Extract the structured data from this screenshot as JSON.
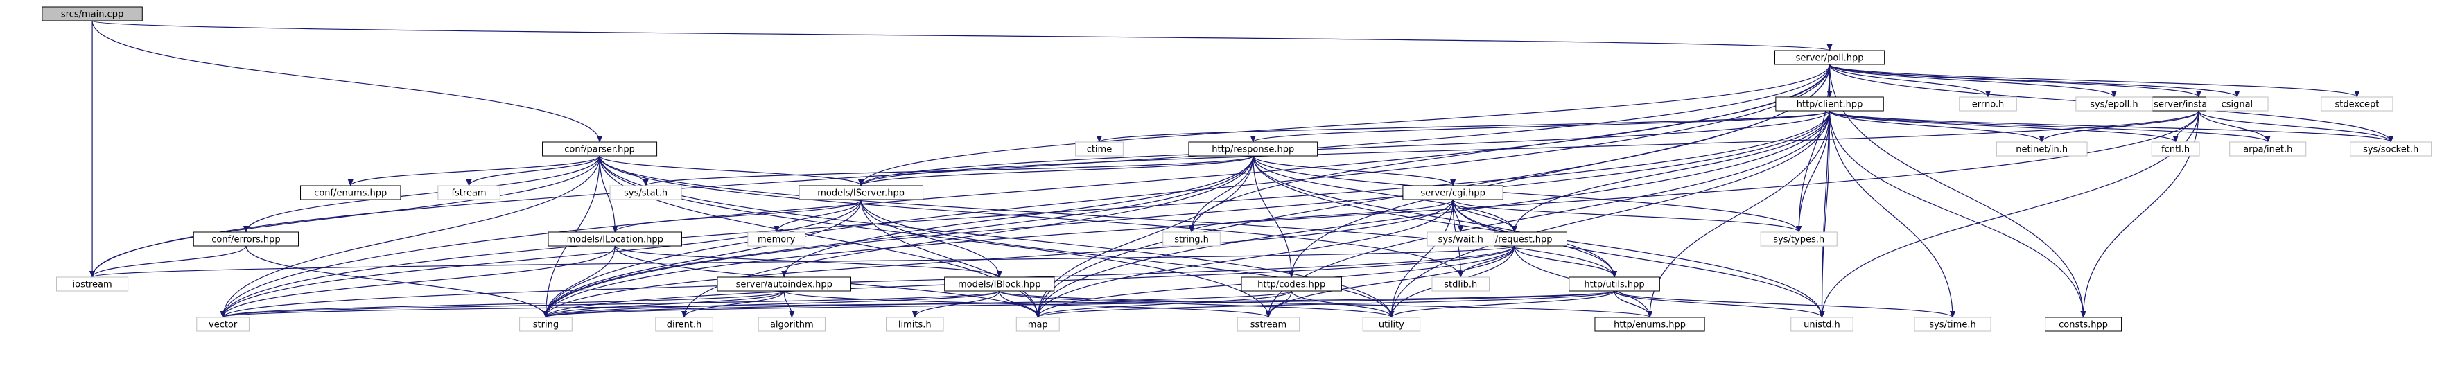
{
  "graph": {
    "root": "srcs/main.cpp",
    "colors": {
      "edge": "#191970",
      "root_fill": "#bfbfbf",
      "node_fill": "#ffffff",
      "node_border": "#000000",
      "system_header_border": "#bfbfbf"
    },
    "nodes": [
      {
        "id": "main",
        "label": "srcs/main.cpp",
        "kind": "root"
      },
      {
        "id": "poll",
        "label": "server/poll.hpp",
        "kind": "project"
      },
      {
        "id": "client",
        "label": "http/client.hpp",
        "kind": "project"
      },
      {
        "id": "instance",
        "label": "server/instance.hpp",
        "kind": "project"
      },
      {
        "id": "response",
        "label": "http/response.hpp",
        "kind": "project"
      },
      {
        "id": "parser",
        "label": "conf/parser.hpp",
        "kind": "project"
      },
      {
        "id": "confenums",
        "label": "conf/enums.hpp",
        "kind": "project"
      },
      {
        "id": "iserver",
        "label": "models/IServer.hpp",
        "kind": "project"
      },
      {
        "id": "cgi",
        "label": "server/cgi.hpp",
        "kind": "project"
      },
      {
        "id": "confErrors",
        "label": "conf/errors.hpp",
        "kind": "project"
      },
      {
        "id": "ilocation",
        "label": "models/ILocation.hpp",
        "kind": "project"
      },
      {
        "id": "request",
        "label": "http/request.hpp",
        "kind": "project"
      },
      {
        "id": "autoindex",
        "label": "server/autoindex.hpp",
        "kind": "project"
      },
      {
        "id": "iblock",
        "label": "models/IBlock.hpp",
        "kind": "project"
      },
      {
        "id": "codes",
        "label": "http/codes.hpp",
        "kind": "project"
      },
      {
        "id": "utils",
        "label": "http/utils.hpp",
        "kind": "project"
      },
      {
        "id": "httpenums",
        "label": "http/enums.hpp",
        "kind": "project"
      },
      {
        "id": "consts",
        "label": "consts.hpp",
        "kind": "project"
      },
      {
        "id": "errno",
        "label": "errno.h",
        "kind": "system"
      },
      {
        "id": "sysepoll",
        "label": "sys/epoll.h",
        "kind": "system"
      },
      {
        "id": "csignal",
        "label": "csignal",
        "kind": "system"
      },
      {
        "id": "stdexcept",
        "label": "stdexcept",
        "kind": "system"
      },
      {
        "id": "ctime",
        "label": "ctime",
        "kind": "system"
      },
      {
        "id": "netinet",
        "label": "netinet/in.h",
        "kind": "system"
      },
      {
        "id": "fcntl",
        "label": "fcntl.h",
        "kind": "system"
      },
      {
        "id": "arpainet",
        "label": "arpa/inet.h",
        "kind": "system"
      },
      {
        "id": "syssocket",
        "label": "sys/socket.h",
        "kind": "system"
      },
      {
        "id": "fstream",
        "label": "fstream",
        "kind": "system"
      },
      {
        "id": "sysstat",
        "label": "sys/stat.h",
        "kind": "system"
      },
      {
        "id": "memory",
        "label": "memory",
        "kind": "system"
      },
      {
        "id": "stringh",
        "label": "string.h",
        "kind": "system"
      },
      {
        "id": "syswait",
        "label": "sys/wait.h",
        "kind": "system"
      },
      {
        "id": "systypes",
        "label": "sys/types.h",
        "kind": "system"
      },
      {
        "id": "iostream",
        "label": "iostream",
        "kind": "system"
      },
      {
        "id": "stdlib",
        "label": "stdlib.h",
        "kind": "system"
      },
      {
        "id": "vector",
        "label": "vector",
        "kind": "system"
      },
      {
        "id": "string",
        "label": "string",
        "kind": "system"
      },
      {
        "id": "dirent",
        "label": "dirent.h",
        "kind": "system"
      },
      {
        "id": "algorithm",
        "label": "algorithm",
        "kind": "system"
      },
      {
        "id": "limits",
        "label": "limits.h",
        "kind": "system"
      },
      {
        "id": "map",
        "label": "map",
        "kind": "system"
      },
      {
        "id": "sstream",
        "label": "sstream",
        "kind": "system"
      },
      {
        "id": "utility",
        "label": "utility",
        "kind": "system"
      },
      {
        "id": "unistd",
        "label": "unistd.h",
        "kind": "system"
      },
      {
        "id": "systime",
        "label": "sys/time.h",
        "kind": "system"
      }
    ],
    "edges": [
      [
        "main",
        "poll"
      ],
      [
        "main",
        "parser"
      ],
      [
        "main",
        "iostream"
      ],
      [
        "poll",
        "client"
      ],
      [
        "poll",
        "instance"
      ],
      [
        "poll",
        "errno"
      ],
      [
        "poll",
        "sysepoll"
      ],
      [
        "poll",
        "csignal"
      ],
      [
        "poll",
        "stdexcept"
      ],
      [
        "poll",
        "syssocket"
      ],
      [
        "poll",
        "systypes"
      ],
      [
        "poll",
        "consts"
      ],
      [
        "poll",
        "iserver"
      ],
      [
        "poll",
        "codes"
      ],
      [
        "poll",
        "stringh"
      ],
      [
        "poll",
        "map"
      ],
      [
        "poll",
        "vector"
      ],
      [
        "poll",
        "string"
      ],
      [
        "poll",
        "iostream"
      ],
      [
        "poll",
        "unistd"
      ],
      [
        "client",
        "response"
      ],
      [
        "client",
        "request"
      ],
      [
        "client",
        "ctime"
      ],
      [
        "client",
        "netinet"
      ],
      [
        "client",
        "fcntl"
      ],
      [
        "client",
        "arpainet"
      ],
      [
        "client",
        "syssocket"
      ],
      [
        "client",
        "systypes"
      ],
      [
        "client",
        "consts"
      ],
      [
        "client",
        "httpenums"
      ],
      [
        "client",
        "iserver"
      ],
      [
        "client",
        "unistd"
      ],
      [
        "client",
        "systime"
      ],
      [
        "client",
        "sstream"
      ],
      [
        "client",
        "map"
      ],
      [
        "client",
        "string"
      ],
      [
        "client",
        "vector"
      ],
      [
        "client",
        "utility"
      ],
      [
        "instance",
        "netinet"
      ],
      [
        "instance",
        "fcntl"
      ],
      [
        "instance",
        "arpainet"
      ],
      [
        "instance",
        "syssocket"
      ],
      [
        "instance",
        "iserver"
      ],
      [
        "instance",
        "unistd"
      ],
      [
        "instance",
        "consts"
      ],
      [
        "instance",
        "string"
      ],
      [
        "response",
        "iserver"
      ],
      [
        "response",
        "cgi"
      ],
      [
        "response",
        "request"
      ],
      [
        "response",
        "codes"
      ],
      [
        "response",
        "utils"
      ],
      [
        "response",
        "autoindex"
      ],
      [
        "response",
        "sysstat"
      ],
      [
        "response",
        "stringh"
      ],
      [
        "response",
        "systypes"
      ],
      [
        "response",
        "map"
      ],
      [
        "response",
        "string"
      ],
      [
        "response",
        "unistd"
      ],
      [
        "response",
        "dirent"
      ],
      [
        "parser",
        "confenums"
      ],
      [
        "parser",
        "confErrors"
      ],
      [
        "parser",
        "iserver"
      ],
      [
        "parser",
        "ilocation"
      ],
      [
        "parser",
        "fstream"
      ],
      [
        "parser",
        "sysstat"
      ],
      [
        "parser",
        "iostream"
      ],
      [
        "parser",
        "vector"
      ],
      [
        "parser",
        "string"
      ],
      [
        "parser",
        "stdlib"
      ],
      [
        "parser",
        "sstream"
      ],
      [
        "parser",
        "utility"
      ],
      [
        "parser",
        "map"
      ],
      [
        "parser",
        "utils"
      ],
      [
        "iserver",
        "ilocation"
      ],
      [
        "iserver",
        "iblock"
      ],
      [
        "iserver",
        "memory"
      ],
      [
        "iserver",
        "map"
      ],
      [
        "iserver",
        "string"
      ],
      [
        "iserver",
        "vector"
      ],
      [
        "iserver",
        "utility"
      ],
      [
        "cgi",
        "request"
      ],
      [
        "cgi",
        "utils"
      ],
      [
        "cgi",
        "stringh"
      ],
      [
        "cgi",
        "syswait"
      ],
      [
        "cgi",
        "systypes"
      ],
      [
        "cgi",
        "stdlib"
      ],
      [
        "cgi",
        "unistd"
      ],
      [
        "cgi",
        "map"
      ],
      [
        "cgi",
        "string"
      ],
      [
        "cgi",
        "utility"
      ],
      [
        "confErrors",
        "iostream"
      ],
      [
        "confErrors",
        "string"
      ],
      [
        "ilocation",
        "iblock"
      ],
      [
        "ilocation",
        "vector"
      ],
      [
        "ilocation",
        "string"
      ],
      [
        "ilocation",
        "map"
      ],
      [
        "request",
        "utils"
      ],
      [
        "request",
        "httpenums"
      ],
      [
        "request",
        "iostream"
      ],
      [
        "request",
        "stdlib"
      ],
      [
        "request",
        "sstream"
      ],
      [
        "request",
        "map"
      ],
      [
        "request",
        "string"
      ],
      [
        "request",
        "utility"
      ],
      [
        "request",
        "vector"
      ],
      [
        "autoindex",
        "dirent"
      ],
      [
        "autoindex",
        "algorithm"
      ],
      [
        "autoindex",
        "vector"
      ],
      [
        "autoindex",
        "string"
      ],
      [
        "autoindex",
        "sstream"
      ],
      [
        "iblock",
        "limits"
      ],
      [
        "iblock",
        "map"
      ],
      [
        "iblock",
        "string"
      ],
      [
        "iblock",
        "vector"
      ],
      [
        "iblock",
        "utility"
      ],
      [
        "iblock",
        "httpenums"
      ],
      [
        "codes",
        "map"
      ],
      [
        "codes",
        "sstream"
      ],
      [
        "codes",
        "utility"
      ],
      [
        "codes",
        "string"
      ],
      [
        "utils",
        "httpenums"
      ],
      [
        "utils",
        "unistd"
      ],
      [
        "utils",
        "systime"
      ],
      [
        "utils",
        "string"
      ],
      [
        "utils",
        "vector"
      ],
      [
        "utils",
        "map"
      ],
      [
        "utils",
        "utility"
      ]
    ]
  }
}
